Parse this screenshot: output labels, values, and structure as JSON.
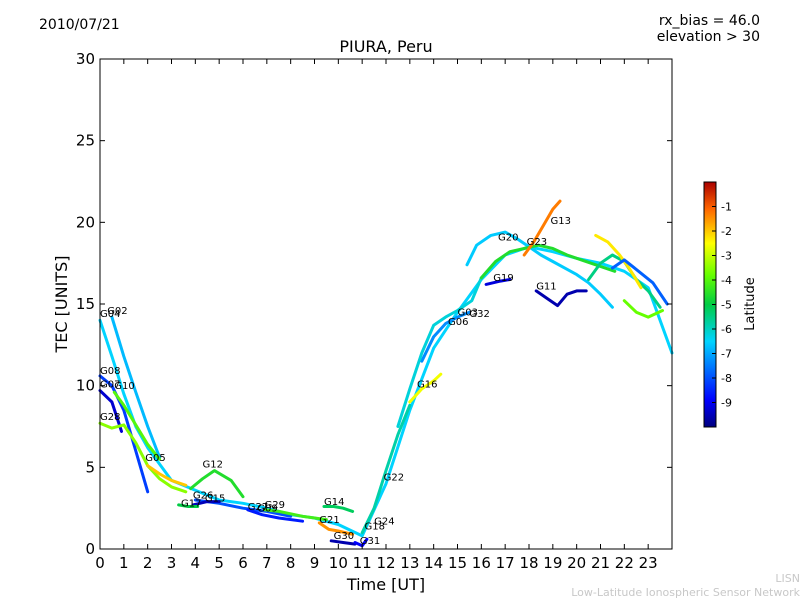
{
  "header": {
    "date": "2010/07/21",
    "rx_bias": "rx_bias = 46.0",
    "elevation": "elevation > 30"
  },
  "footer": {
    "line1": "LISN",
    "line2": "Low-Latitude Ionospheric Sensor Network"
  },
  "chart_data": {
    "type": "scatter",
    "title": "PIURA, Peru",
    "xlabel": "Time [UT]",
    "ylabel": "TEC [UNITS]",
    "xlim": [
      0,
      24
    ],
    "ylim": [
      0,
      30
    ],
    "xticks": [
      "0",
      "1",
      "2",
      "3",
      "4",
      "5",
      "6",
      "7",
      "8",
      "9",
      "10",
      "11",
      "12",
      "13",
      "14",
      "15",
      "16",
      "17",
      "18",
      "19",
      "20",
      "21",
      "22",
      "23"
    ],
    "yticks": [
      "0",
      "5",
      "10",
      "15",
      "20",
      "25",
      "30"
    ],
    "colorbar": {
      "label": "Latitude",
      "min": -10,
      "max": 0,
      "ticks": [
        "-1",
        "-2",
        "-3",
        "-4",
        "-5",
        "-6",
        "-7",
        "-8",
        "-9"
      ]
    },
    "satellites": [
      {
        "name": "G04",
        "x": 0.0,
        "y": 14.2
      },
      {
        "name": "G02",
        "x": 0.3,
        "y": 14.4
      },
      {
        "name": "G08",
        "x": 0.0,
        "y": 10.7
      },
      {
        "name": "G07",
        "x": 0.0,
        "y": 9.9
      },
      {
        "name": "G10",
        "x": 0.6,
        "y": 9.8
      },
      {
        "name": "G28",
        "x": 0.0,
        "y": 7.9
      },
      {
        "name": "G05",
        "x": 1.9,
        "y": 5.4
      },
      {
        "name": "G12",
        "x": 4.3,
        "y": 5.0
      },
      {
        "name": "G26",
        "x": 3.9,
        "y": 3.1
      },
      {
        "name": "G15",
        "x": 4.4,
        "y": 2.9
      },
      {
        "name": "G17",
        "x": 3.4,
        "y": 2.6
      },
      {
        "name": "G27",
        "x": 6.2,
        "y": 2.4
      },
      {
        "name": "G09",
        "x": 6.6,
        "y": 2.3
      },
      {
        "name": "G29",
        "x": 6.9,
        "y": 2.5
      },
      {
        "name": "G14",
        "x": 9.4,
        "y": 2.7
      },
      {
        "name": "G21",
        "x": 9.2,
        "y": 1.6
      },
      {
        "name": "G30",
        "x": 9.8,
        "y": 0.6
      },
      {
        "name": "G31",
        "x": 10.9,
        "y": 0.3
      },
      {
        "name": "G18",
        "x": 11.1,
        "y": 1.2
      },
      {
        "name": "G24",
        "x": 11.5,
        "y": 1.5
      },
      {
        "name": "G22",
        "x": 11.9,
        "y": 4.2
      },
      {
        "name": "G16",
        "x": 13.3,
        "y": 9.9
      },
      {
        "name": "G06",
        "x": 14.6,
        "y": 13.7
      },
      {
        "name": "G03",
        "x": 15.0,
        "y": 14.3
      },
      {
        "name": "G32",
        "x": 15.5,
        "y": 14.2
      },
      {
        "name": "G19",
        "x": 16.5,
        "y": 16.4
      },
      {
        "name": "G20",
        "x": 16.7,
        "y": 18.9
      },
      {
        "name": "G23",
        "x": 17.9,
        "y": 18.6
      },
      {
        "name": "G13",
        "x": 18.9,
        "y": 19.9
      },
      {
        "name": "G11",
        "x": 18.3,
        "y": 15.9
      }
    ],
    "traces": [
      {
        "sat": "G04",
        "points": [
          [
            0,
            14.0
          ],
          [
            0.5,
            11.8
          ],
          [
            1,
            9.5
          ],
          [
            1.5,
            7.5
          ],
          [
            2,
            6.2
          ],
          [
            2.5,
            5.2
          ],
          [
            3,
            4.2
          ],
          [
            4,
            3.6
          ],
          [
            5,
            3.0
          ],
          [
            6,
            2.8
          ],
          [
            7,
            2.5
          ],
          [
            8,
            2.1
          ],
          [
            9,
            1.9
          ],
          [
            10,
            1.5
          ],
          [
            11,
            0.8
          ],
          [
            12,
            4.0
          ],
          [
            13,
            8.5
          ],
          [
            14,
            12.3
          ],
          [
            15,
            14.5
          ],
          [
            16,
            16.5
          ],
          [
            17,
            18.0
          ],
          [
            18,
            18.5
          ],
          [
            19,
            18.2
          ],
          [
            20,
            17.8
          ],
          [
            21,
            17.5
          ],
          [
            22,
            17.0
          ],
          [
            23,
            16.0
          ],
          [
            24,
            12.0
          ]
        ]
      },
      {
        "sat": "G02",
        "points": [
          [
            0.5,
            14.2
          ],
          [
            1,
            11.8
          ],
          [
            1.5,
            9.6
          ],
          [
            2,
            7.5
          ],
          [
            2.5,
            5.6
          ]
        ]
      },
      {
        "sat": "G08",
        "points": [
          [
            0,
            10.6
          ],
          [
            0.5,
            10.0
          ],
          [
            1,
            8.5
          ],
          [
            1.5,
            6.0
          ],
          [
            2,
            3.5
          ]
        ]
      },
      {
        "sat": "G07",
        "points": [
          [
            0,
            9.7
          ],
          [
            0.5,
            9.0
          ],
          [
            0.9,
            7.2
          ]
        ]
      },
      {
        "sat": "G10",
        "points": [
          [
            0.6,
            9.6
          ],
          [
            1,
            8.8
          ],
          [
            1.5,
            7.6
          ],
          [
            2,
            6.4
          ],
          [
            2.5,
            5.5
          ]
        ]
      },
      {
        "sat": "G28",
        "points": [
          [
            0,
            7.7
          ],
          [
            0.5,
            7.4
          ],
          [
            1,
            7.6
          ],
          [
            1.5,
            6.5
          ],
          [
            2,
            5.1
          ],
          [
            2.5,
            4.3
          ],
          [
            3,
            3.8
          ],
          [
            3.6,
            3.5
          ]
        ]
      },
      {
        "sat": "G05",
        "points": [
          [
            2,
            5.1
          ],
          [
            2.5,
            4.6
          ],
          [
            3,
            4.2
          ],
          [
            3.6,
            3.9
          ]
        ]
      },
      {
        "sat": "G12",
        "points": [
          [
            3.8,
            3.7
          ],
          [
            4.3,
            4.3
          ],
          [
            4.8,
            4.8
          ],
          [
            5.5,
            4.2
          ],
          [
            6,
            3.2
          ]
        ]
      },
      {
        "sat": "G15",
        "points": [
          [
            4,
            3.0
          ],
          [
            5,
            2.8
          ],
          [
            6,
            2.5
          ],
          [
            7,
            2.3
          ],
          [
            8,
            2.0
          ]
        ]
      },
      {
        "sat": "G26",
        "points": [
          [
            3.9,
            2.7
          ],
          [
            4.5,
            2.9
          ],
          [
            5,
            2.9
          ]
        ]
      },
      {
        "sat": "G17",
        "points": [
          [
            3.3,
            2.7
          ],
          [
            3.7,
            2.6
          ],
          [
            4.1,
            2.6
          ]
        ]
      },
      {
        "sat": "G27",
        "points": [
          [
            6.2,
            2.4
          ],
          [
            6.8,
            2.1
          ],
          [
            7.5,
            1.9
          ],
          [
            8.5,
            1.7
          ]
        ]
      },
      {
        "sat": "G29",
        "points": [
          [
            6.9,
            2.4
          ],
          [
            7.5,
            2.3
          ],
          [
            8.5,
            2.0
          ],
          [
            9.5,
            1.8
          ]
        ]
      },
      {
        "sat": "G14",
        "points": [
          [
            9.4,
            2.6
          ],
          [
            9.8,
            2.6
          ],
          [
            10.2,
            2.5
          ],
          [
            10.6,
            2.3
          ]
        ]
      },
      {
        "sat": "G21",
        "points": [
          [
            9.2,
            1.6
          ],
          [
            9.6,
            1.2
          ],
          [
            10.0,
            1.1
          ],
          [
            10.6,
            0.9
          ]
        ]
      },
      {
        "sat": "G30",
        "points": [
          [
            9.7,
            0.5
          ],
          [
            10.2,
            0.4
          ],
          [
            10.7,
            0.3
          ]
        ]
      },
      {
        "sat": "G31",
        "points": [
          [
            10.7,
            0.4
          ],
          [
            11.0,
            0.2
          ],
          [
            11.2,
            0.6
          ]
        ]
      },
      {
        "sat": "G22",
        "points": [
          [
            11.0,
            1.0
          ],
          [
            11.5,
            2.5
          ],
          [
            12,
            4.8
          ],
          [
            12.5,
            7.0
          ],
          [
            13,
            8.8
          ]
        ]
      },
      {
        "sat": "G16",
        "points": [
          [
            13,
            9.0
          ],
          [
            13.5,
            9.8
          ],
          [
            14,
            10.3
          ],
          [
            14.3,
            10.7
          ]
        ]
      },
      {
        "sat": "G06",
        "points": [
          [
            13.5,
            11.5
          ],
          [
            14,
            13.0
          ],
          [
            14.5,
            13.8
          ],
          [
            15,
            14.2
          ],
          [
            15.5,
            14.5
          ]
        ]
      },
      {
        "sat": "G03",
        "points": [
          [
            12.5,
            7.5
          ],
          [
            13,
            9.8
          ],
          [
            13.5,
            12.0
          ],
          [
            14,
            13.7
          ],
          [
            14.5,
            14.2
          ],
          [
            15,
            14.6
          ],
          [
            15.6,
            15.2
          ],
          [
            16.0,
            16.6
          ]
        ]
      },
      {
        "sat": "G19",
        "points": [
          [
            16.2,
            16.2
          ],
          [
            16.8,
            16.4
          ],
          [
            17.2,
            16.5
          ]
        ]
      },
      {
        "sat": "G20",
        "points": [
          [
            15.4,
            17.4
          ],
          [
            15.8,
            18.6
          ],
          [
            16.4,
            19.2
          ],
          [
            17,
            19.4
          ],
          [
            17.5,
            19.0
          ],
          [
            18,
            18.5
          ],
          [
            18.5,
            18.0
          ],
          [
            19,
            17.6
          ],
          [
            19.5,
            17.2
          ],
          [
            20,
            16.8
          ],
          [
            20.5,
            16.3
          ],
          [
            21,
            15.6
          ],
          [
            21.5,
            14.8
          ]
        ]
      },
      {
        "sat": "G23",
        "points": [
          [
            16.0,
            16.6
          ],
          [
            16.6,
            17.6
          ],
          [
            17.2,
            18.2
          ],
          [
            17.8,
            18.4
          ],
          [
            18.4,
            18.6
          ],
          [
            19,
            18.4
          ],
          [
            19.6,
            18.0
          ],
          [
            20.2,
            17.7
          ],
          [
            21,
            17.3
          ],
          [
            21.6,
            17.0
          ]
        ]
      },
      {
        "sat": "G13",
        "points": [
          [
            17.8,
            18.0
          ],
          [
            18.2,
            18.8
          ],
          [
            18.6,
            19.8
          ],
          [
            19.0,
            20.8
          ],
          [
            19.3,
            21.3
          ]
        ]
      },
      {
        "sat": "G11",
        "points": [
          [
            18.3,
            15.8
          ],
          [
            18.8,
            15.3
          ],
          [
            19.2,
            14.9
          ],
          [
            19.6,
            15.6
          ],
          [
            20.0,
            15.8
          ],
          [
            20.4,
            15.8
          ]
        ]
      },
      {
        "sat": "G09",
        "points": [
          [
            20.5,
            16.5
          ],
          [
            21,
            17.5
          ],
          [
            21.5,
            18.0
          ],
          [
            22,
            17.6
          ],
          [
            22.5,
            16.5
          ],
          [
            23,
            15.8
          ],
          [
            23.5,
            14.8
          ]
        ]
      },
      {
        "sat": "G24",
        "points": [
          [
            20.8,
            19.2
          ],
          [
            21.3,
            18.8
          ],
          [
            21.8,
            18.0
          ],
          [
            22.2,
            17.2
          ],
          [
            22.7,
            16.0
          ]
        ]
      },
      {
        "sat": "G32",
        "points": [
          [
            21.5,
            17.2
          ],
          [
            22.0,
            17.7
          ],
          [
            22.6,
            17.0
          ],
          [
            23.2,
            16.3
          ],
          [
            23.8,
            15.0
          ]
        ]
      },
      {
        "sat": "G18",
        "points": [
          [
            22.0,
            15.2
          ],
          [
            22.5,
            14.5
          ],
          [
            23.0,
            14.2
          ],
          [
            23.6,
            14.6
          ]
        ]
      }
    ],
    "trace_latitudes": {
      "G04": -6.5,
      "G02": -6.8,
      "G08": -8.2,
      "G07": -9.3,
      "G10": -4.0,
      "G28": -3.5,
      "G05": -2.0,
      "G12": -4.6,
      "G15": -8.0,
      "G26": -9.5,
      "G17": -5.0,
      "G27": -8.6,
      "G29": -4.2,
      "G14": -5.2,
      "G21": -1.5,
      "G30": -9.6,
      "G31": -8.9,
      "G22": -5.8,
      "G16": -2.6,
      "G06": -7.3,
      "G03": -6.2,
      "G19": -9.2,
      "G20": -6.6,
      "G23": -4.6,
      "G13": -1.3,
      "G11": -9.6,
      "G09": -5.5,
      "G24": -2.3,
      "G32": -7.8,
      "G18": -3.8
    }
  }
}
